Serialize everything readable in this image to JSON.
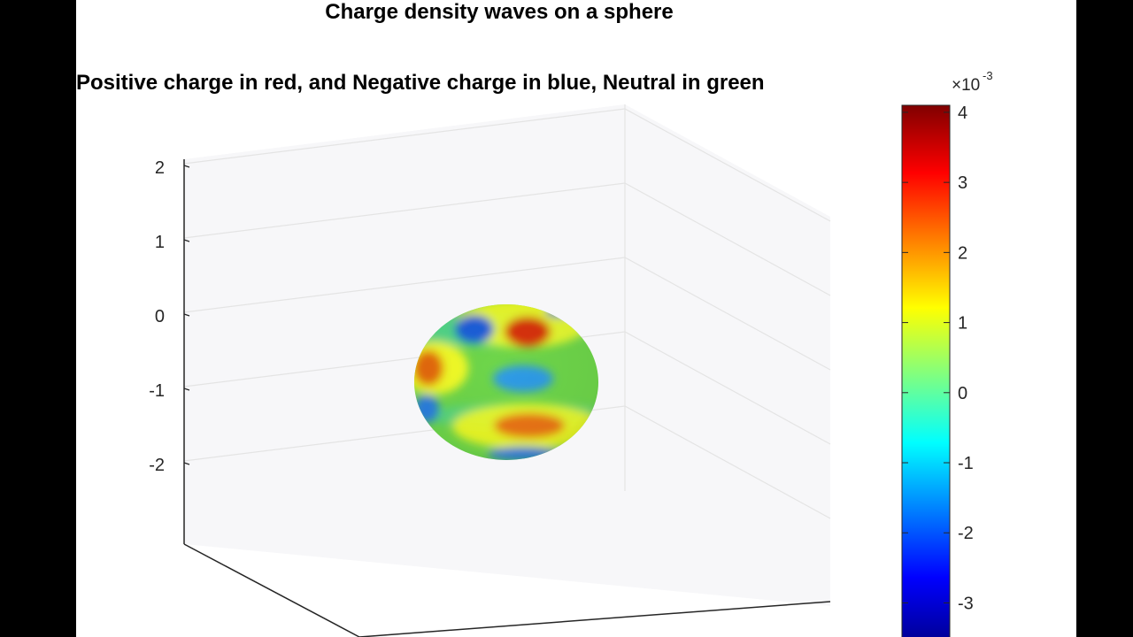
{
  "chart_data": {
    "type": "surface",
    "title": "Charge density waves on a sphere",
    "subtitle": "Positive charge in red, and Negative charge in blue, Neutral in green",
    "z_ticks": [
      "2",
      "1",
      "0",
      "-1",
      "-2"
    ],
    "zlim": [
      -2.5,
      2.5
    ],
    "grid": true,
    "colormap": "jet",
    "colorbar": {
      "location": "right",
      "exponent_label": "×10",
      "exponent": "-3",
      "ticks": [
        "4",
        "3",
        "2",
        "1",
        "0",
        "-1",
        "-2",
        "-3"
      ],
      "range": [
        -3.6,
        4.1
      ]
    },
    "sphere": {
      "radius": 1,
      "center": [
        0,
        0,
        0
      ],
      "features": [
        {
          "polarity": "negative",
          "value": -2.3
        },
        {
          "polarity": "positive",
          "value": 2.8
        },
        {
          "polarity": "positive",
          "value": 2.5
        },
        {
          "polarity": "negative",
          "value": -1.8
        },
        {
          "polarity": "positive",
          "value": 2.3
        },
        {
          "polarity": "negative",
          "value": -1.5
        },
        {
          "polarity": "negative",
          "value": -2.0
        },
        {
          "polarity": "negative",
          "value": -2.2
        },
        {
          "polarity": "positive",
          "value": 2.0
        }
      ]
    }
  },
  "colors": {
    "background": "#ffffff",
    "axes_background": "#f7f7f9",
    "grid": "#e6e6e6",
    "axis": "#262626",
    "neutral": "#6ed64a",
    "positive": "#d21a00",
    "negative": "#1f5fd9"
  }
}
